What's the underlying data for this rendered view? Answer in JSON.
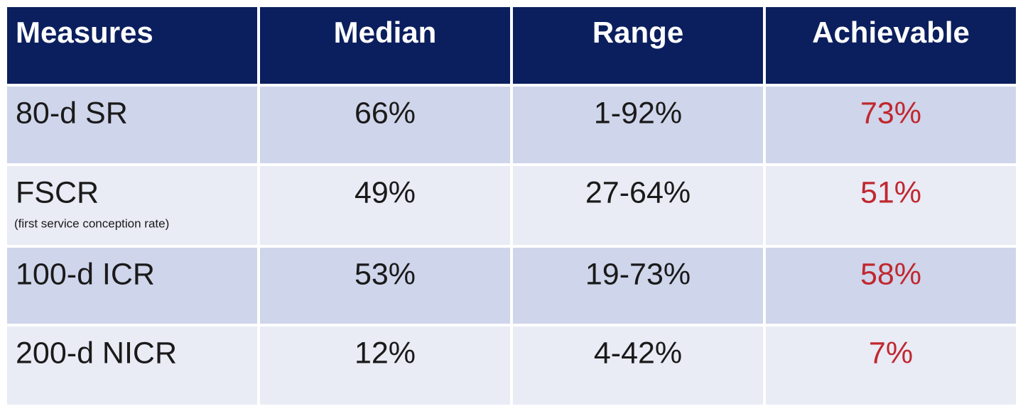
{
  "table": {
    "header": [
      "Measures",
      "Median",
      "Range",
      "Achievable"
    ],
    "rows": [
      {
        "measure": "80-d SR",
        "median": "66%",
        "range": "1-92%",
        "achievable": "73%"
      },
      {
        "measure": "FSCR",
        "note": "(first service conception rate)",
        "median": "49%",
        "range": "27-64%",
        "achievable": "51%"
      },
      {
        "measure": "100-d ICR",
        "median": "53%",
        "range": "19-73%",
        "achievable": "58%"
      },
      {
        "measure": "200-d NICR",
        "median": "12%",
        "range": "4-42%",
        "achievable": "7%"
      }
    ]
  }
}
